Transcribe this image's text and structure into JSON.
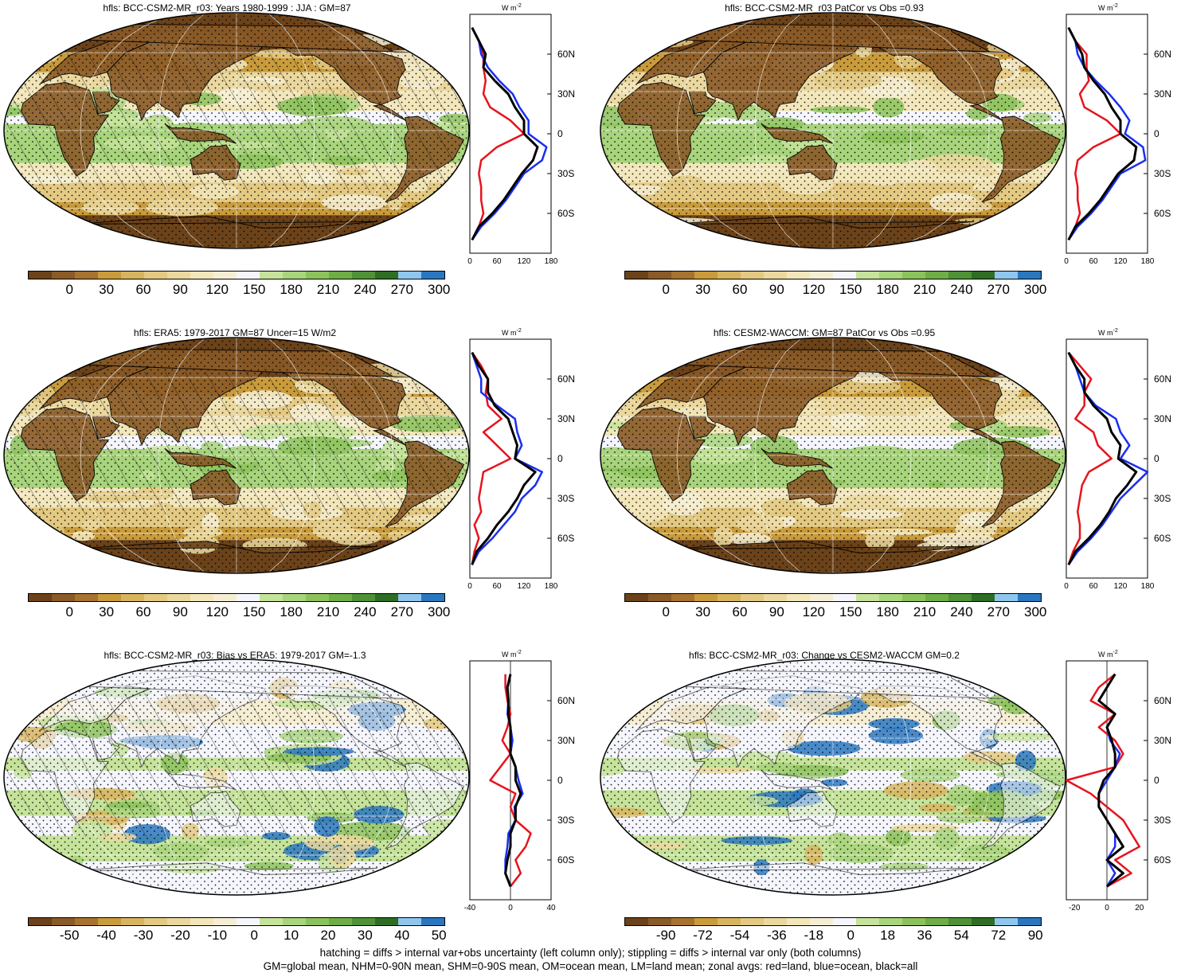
{
  "palette": {
    "abs": [
      "#6b4219",
      "#8a5a27",
      "#a7732f",
      "#c99b3b",
      "#d7b560",
      "#e3c982",
      "#ebd89f",
      "#f2e6bb",
      "#f6eed4",
      "#f5f6fd",
      "#c5e39a",
      "#a8d47c",
      "#8cc25c",
      "#6fad46",
      "#4f9137",
      "#2f6d24",
      "#8fc6ee",
      "#2a77c0"
    ],
    "diff": [
      "#6b4219",
      "#8a5a27",
      "#a7732f",
      "#c99b3b",
      "#d7b560",
      "#e3c982",
      "#ebd89f",
      "#f2e6bb",
      "#f6eed4",
      "#f5f6fd",
      "#c5e39a",
      "#a8d47c",
      "#8cc25c",
      "#6fad46",
      "#4f9137",
      "#2f6d24",
      "#8fc6ee",
      "#2a77c0"
    ],
    "land": "#e6141e",
    "ocean": "#1a2ef0",
    "all": "#000000"
  },
  "panels": [
    {
      "title": "hfls: BCC-CSM2-MR_r03: Years 1980-1999 : JJA : GM=87",
      "colorbar": "abs",
      "cticks": [
        "0",
        "30",
        "60",
        "90",
        "120",
        "150",
        "180",
        "210",
        "240",
        "270",
        "300"
      ],
      "zticks": [
        "0",
        "60",
        "120",
        "180"
      ],
      "zmax": 180,
      "zmin": 0,
      "hatch": true,
      "shape": "abs"
    },
    {
      "title": "hfls: BCC-CSM2-MR_r03 PatCor vs Obs =0.93",
      "colorbar": "abs",
      "cticks": [
        "0",
        "30",
        "60",
        "90",
        "120",
        "150",
        "180",
        "210",
        "240",
        "270",
        "300"
      ],
      "zticks": [
        "0",
        "60",
        "120",
        "180"
      ],
      "zmax": 180,
      "zmin": 0,
      "hatch": false,
      "shape": "abs"
    },
    {
      "title": "hfls: ERA5: 1979-2017 GM=87 Uncer=15 W/m2",
      "colorbar": "abs",
      "cticks": [
        "0",
        "30",
        "60",
        "90",
        "120",
        "150",
        "180",
        "210",
        "240",
        "270",
        "300"
      ],
      "zticks": [
        "0",
        "60",
        "120",
        "180"
      ],
      "zmax": 180,
      "zmin": 0,
      "hatch": true,
      "shape": "abs"
    },
    {
      "title": "hfls: CESM2-WACCM: GM=87 PatCor vs Obs =0.95",
      "colorbar": "abs",
      "cticks": [
        "0",
        "30",
        "60",
        "90",
        "120",
        "150",
        "180",
        "210",
        "240",
        "270",
        "300"
      ],
      "zticks": [
        "0",
        "60",
        "120",
        "180"
      ],
      "zmax": 180,
      "zmin": 0,
      "hatch": false,
      "shape": "abs"
    },
    {
      "title": "hfls: BCC-CSM2-MR_r03: Bias vs ERA5: 1979-2017 GM=-1.3",
      "colorbar": "diff",
      "cticks": [
        "-50",
        "-40",
        "-30",
        "-20",
        "-10",
        "0",
        "10",
        "20",
        "30",
        "40",
        "50"
      ],
      "zticks": [
        "-40",
        "0",
        "40"
      ],
      "zmax": 40,
      "zmin": -40,
      "hatch": true,
      "shape": "diff"
    },
    {
      "title": "hfls: BCC-CSM2-MR_r03: Change vs CESM2-WACCM GM=0.2",
      "colorbar": "diff",
      "cticks": [
        "-90",
        "-72",
        "-54",
        "-36",
        "-18",
        "0",
        "18",
        "36",
        "54",
        "72",
        "90"
      ],
      "zticks": [
        "-20",
        "0",
        "20"
      ],
      "zmax": 25,
      "zmin": -25,
      "hatch": false,
      "shape": "diff"
    }
  ],
  "lat_labels": [
    "60N",
    "30N",
    "0",
    "30S",
    "60S"
  ],
  "units": "W m",
  "units_sup": "-2",
  "footer": {
    "line1": "hatching = diffs > internal var+obs uncertainty (left column only); stippling = diffs > internal var only (both columns)",
    "line2": "GM=global mean, NHM=0-90N mean, SHM=0-90S mean, OM=ocean mean, LM=land mean; zonal avgs: red=land, blue=ocean, black=all"
  },
  "chart_data": [
    {
      "type": "heatmap",
      "title": "hfls: BCC-CSM2-MR_r03: Years 1980-1999 : JJA : GM=87",
      "colorbar_ticks": [
        0,
        30,
        60,
        90,
        120,
        150,
        180,
        210,
        240,
        270,
        300
      ],
      "zonal_mean": {
        "type": "line",
        "xlim": [
          0,
          180
        ],
        "y_labels": [
          "60N",
          "30N",
          "0",
          "30S",
          "60S"
        ],
        "lat": [
          80,
          70,
          60,
          50,
          40,
          30,
          20,
          10,
          0,
          -10,
          -20,
          -30,
          -40,
          -50,
          -60,
          -70,
          -80
        ],
        "series": [
          {
            "name": "land",
            "values": [
              5,
              20,
              30,
              30,
              35,
              30,
              45,
              90,
              120,
              60,
              25,
              20,
              25,
              25,
              30,
              20,
              5
            ]
          },
          {
            "name": "ocean",
            "values": [
              5,
              20,
              25,
              40,
              65,
              95,
              110,
              130,
              130,
              170,
              160,
              120,
              100,
              80,
              55,
              25,
              5
            ]
          },
          {
            "name": "all",
            "values": [
              5,
              20,
              35,
              30,
              55,
              85,
              100,
              120,
              120,
              150,
              140,
              115,
              95,
              75,
              50,
              20,
              5
            ]
          }
        ]
      }
    },
    {
      "type": "heatmap",
      "title": "hfls: BCC-CSM2-MR_r03 PatCor vs Obs =0.93",
      "colorbar_ticks": [
        0,
        30,
        60,
        90,
        120,
        150,
        180,
        210,
        240,
        270,
        300
      ],
      "zonal_mean": {
        "type": "line",
        "xlim": [
          0,
          180
        ],
        "y_labels": [
          "60N",
          "30N",
          "0",
          "30S",
          "60S"
        ],
        "lat": [
          80,
          70,
          60,
          50,
          40,
          30,
          20,
          10,
          0,
          -10,
          -20,
          -30,
          -40,
          -50,
          -60,
          -70,
          -80
        ],
        "series": [
          {
            "name": "land",
            "values": [
              5,
              20,
              45,
              45,
              50,
              30,
              40,
              90,
              120,
              60,
              25,
              20,
              25,
              25,
              30,
              20,
              5
            ]
          },
          {
            "name": "ocean",
            "values": [
              5,
              20,
              25,
              40,
              65,
              95,
              120,
              140,
              130,
              170,
              175,
              120,
              100,
              80,
              55,
              25,
              5
            ]
          },
          {
            "name": "all",
            "values": [
              5,
              20,
              35,
              40,
              60,
              85,
              100,
              120,
              120,
              155,
              150,
              115,
              95,
              75,
              50,
              20,
              5
            ]
          }
        ]
      }
    },
    {
      "type": "heatmap",
      "title": "hfls: ERA5: 1979-2017 GM=87 Uncer=15 W/m2",
      "colorbar_ticks": [
        0,
        30,
        60,
        90,
        120,
        150,
        180,
        210,
        240,
        270,
        300
      ],
      "zonal_mean": {
        "type": "line",
        "xlim": [
          0,
          180
        ],
        "y_labels": [
          "60N",
          "30N",
          "0",
          "30S",
          "60S"
        ],
        "lat": [
          80,
          70,
          60,
          50,
          40,
          30,
          20,
          10,
          0,
          -10,
          -20,
          -30,
          -40,
          -50,
          -60,
          -70,
          -80
        ],
        "series": [
          {
            "name": "land",
            "values": [
              5,
              25,
              40,
              35,
              40,
              70,
              30,
              60,
              90,
              30,
              25,
              20,
              25,
              10,
              20,
              10,
              5
            ]
          },
          {
            "name": "ocean",
            "values": [
              5,
              15,
              25,
              25,
              60,
              100,
              105,
              115,
              100,
              160,
              145,
              115,
              100,
              75,
              50,
              20,
              5
            ]
          },
          {
            "name": "all",
            "values": [
              5,
              20,
              40,
              40,
              55,
              85,
              95,
              105,
              100,
              145,
              120,
              105,
              85,
              60,
              40,
              15,
              5
            ]
          }
        ]
      }
    },
    {
      "type": "heatmap",
      "title": "hfls: CESM2-WACCM: GM=87 PatCor vs Obs =0.95",
      "colorbar_ticks": [
        0,
        30,
        60,
        90,
        120,
        150,
        180,
        210,
        240,
        270,
        300
      ],
      "zonal_mean": {
        "type": "line",
        "xlim": [
          0,
          180
        ],
        "y_labels": [
          "60N",
          "30N",
          "0",
          "30S",
          "60S"
        ],
        "lat": [
          80,
          70,
          60,
          50,
          40,
          30,
          20,
          10,
          0,
          -10,
          -20,
          -30,
          -40,
          -50,
          -60,
          -70,
          -80
        ],
        "series": [
          {
            "name": "land",
            "values": [
              5,
              30,
              55,
              40,
              40,
              20,
              60,
              70,
              100,
              50,
              35,
              30,
              25,
              30,
              30,
              15,
              5
            ]
          },
          {
            "name": "ocean",
            "values": [
              5,
              20,
              30,
              40,
              65,
              110,
              120,
              140,
              120,
              180,
              150,
              120,
              100,
              80,
              55,
              25,
              5
            ]
          },
          {
            "name": "all",
            "values": [
              5,
              20,
              40,
              40,
              60,
              90,
              100,
              120,
              115,
              155,
              135,
              110,
              95,
              75,
              50,
              20,
              5
            ]
          }
        ]
      }
    },
    {
      "type": "heatmap",
      "title": "hfls: BCC-CSM2-MR_r03: Bias vs ERA5: 1979-2017 GM=-1.3",
      "colorbar_ticks": [
        -50,
        -40,
        -30,
        -20,
        -10,
        0,
        10,
        20,
        30,
        40,
        50
      ],
      "zonal_mean": {
        "type": "line",
        "xlim": [
          -40,
          40
        ],
        "y_labels": [
          "60N",
          "30N",
          "0",
          "30S",
          "60S"
        ],
        "lat": [
          80,
          70,
          60,
          50,
          40,
          30,
          20,
          10,
          0,
          -10,
          -20,
          -30,
          -40,
          -50,
          -60,
          -70,
          -80
        ],
        "series": [
          {
            "name": "land",
            "values": [
              -5,
              -5,
              -3,
              0,
              -3,
              -8,
              0,
              -10,
              -20,
              5,
              0,
              5,
              20,
              15,
              5,
              10,
              0
            ]
          },
          {
            "name": "ocean",
            "values": [
              0,
              -3,
              -2,
              -3,
              0,
              2,
              0,
              5,
              8,
              12,
              4,
              5,
              -2,
              -3,
              -5,
              -5,
              0
            ]
          },
          {
            "name": "all",
            "values": [
              0,
              -3,
              -2,
              -2,
              0,
              0,
              0,
              5,
              5,
              10,
              5,
              5,
              0,
              0,
              -3,
              -5,
              0
            ]
          }
        ]
      }
    },
    {
      "type": "heatmap",
      "title": "hfls: BCC-CSM2-MR_r03: Change vs CESM2-WACCM GM=0.2",
      "colorbar_ticks": [
        -90,
        -72,
        -54,
        -36,
        -18,
        0,
        18,
        36,
        54,
        72,
        90
      ],
      "zonal_mean": {
        "type": "line",
        "xlim": [
          -25,
          25
        ],
        "y_labels": [
          "60N",
          "30N",
          "0",
          "30S",
          "60S"
        ],
        "lat": [
          80,
          70,
          60,
          50,
          40,
          30,
          20,
          10,
          0,
          -10,
          -20,
          -30,
          -40,
          -50,
          -60,
          -70,
          -80
        ],
        "series": [
          {
            "name": "land",
            "values": [
              5,
              -5,
              -10,
              5,
              -5,
              5,
              10,
              5,
              -25,
              -10,
              0,
              10,
              15,
              20,
              5,
              15,
              0
            ]
          },
          {
            "name": "ocean",
            "values": [
              5,
              0,
              -5,
              5,
              0,
              2,
              8,
              5,
              0,
              -5,
              -5,
              0,
              5,
              5,
              0,
              5,
              0
            ]
          },
          {
            "name": "all",
            "values": [
              5,
              0,
              -5,
              5,
              0,
              3,
              5,
              5,
              -2,
              -5,
              -5,
              0,
              5,
              10,
              0,
              10,
              0
            ]
          }
        ]
      }
    }
  ]
}
